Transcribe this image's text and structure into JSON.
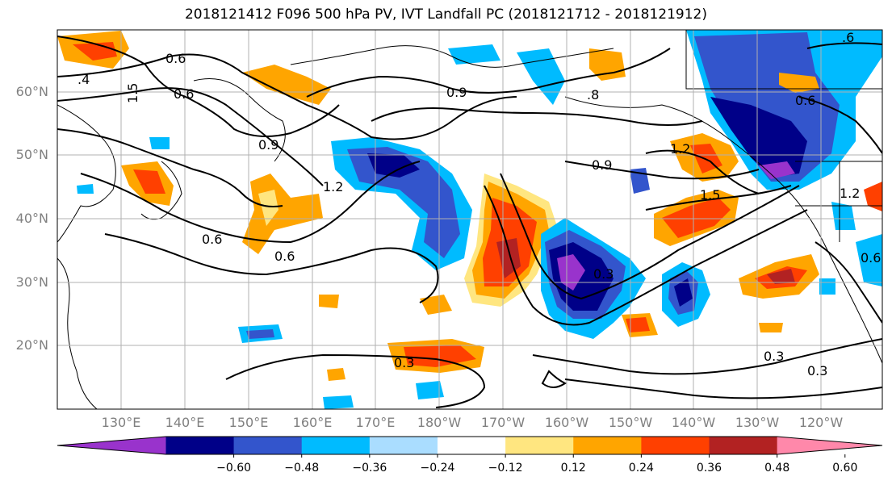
{
  "title": "2018121412 F096 500 hPa PV, IVT Landfall PC (2018121712 - 2018121912)",
  "lat_labels": [
    "60°N",
    "50°N",
    "40°N",
    "30°N",
    "20°N"
  ],
  "lon_labels": [
    "130°E",
    "140°E",
    "150°E",
    "160°E",
    "170°E",
    "180°W",
    "170°W",
    "160°W",
    "150°W",
    "140°W",
    "130°W",
    "120°W"
  ],
  "contour_labels": [
    "0.6",
    "0.6",
    "1.5",
    ".4",
    "0.9",
    "0.9",
    "1.2",
    "0.6",
    "0.6",
    "0.9",
    "1.2",
    "1.5",
    "0.3",
    "0.3",
    "0.3",
    "0.6",
    ".6",
    "0.3",
    "0.6",
    "1.2",
    ".8"
  ],
  "colorbar": {
    "ticks": [
      "−0.60",
      "−0.48",
      "−0.36",
      "−0.24",
      "−0.12",
      "0.12",
      "0.24",
      "0.36",
      "0.48",
      "0.60"
    ],
    "colors": [
      "#9933cc",
      "#000088",
      "#3355cc",
      "#00bbff",
      "#aaddff",
      "#ffffff",
      "#ffe680",
      "#ffa500",
      "#ff4000",
      "#b22222",
      "#ff88aa"
    ]
  }
}
